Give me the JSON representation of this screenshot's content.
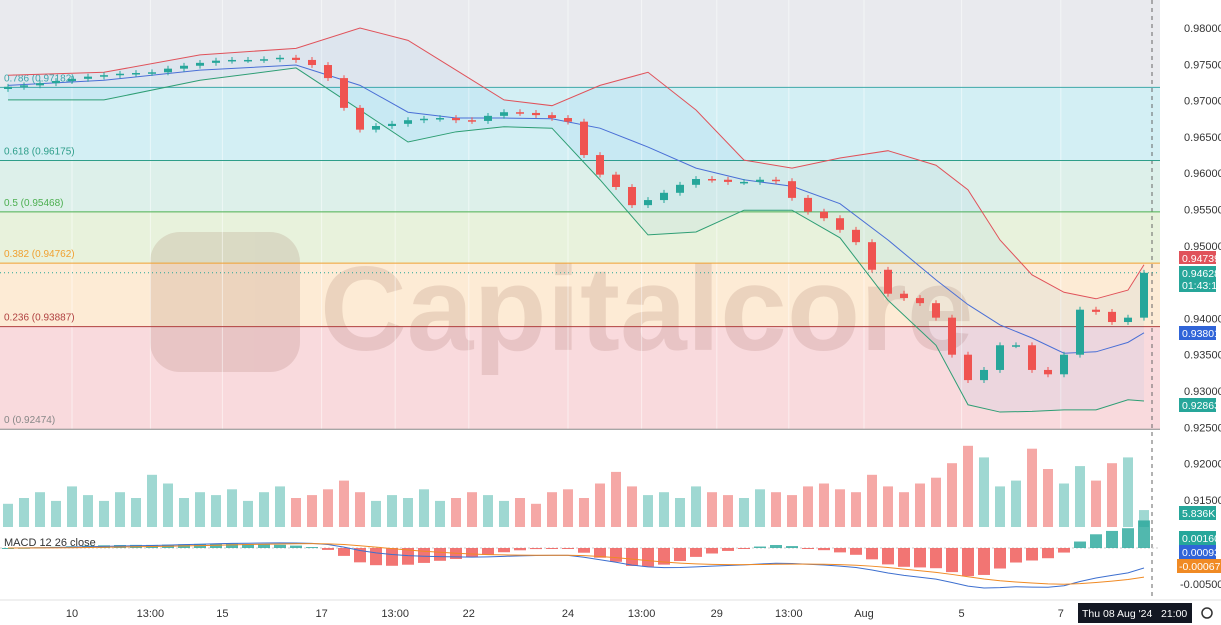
{
  "watermark": "Capitalcore",
  "colors": {
    "up": "#26a69a",
    "down": "#ef5350",
    "vol_up": "#9fd8d2",
    "vol_down": "#f5a8a6",
    "bb_upper": "#e0525a",
    "bb_basis": "#4a6fd6",
    "bb_lower": "#2e9e74",
    "macd": "#3d6fcf",
    "signal": "#f08a24"
  },
  "chart_data": {
    "type": "candlestick",
    "price_axis": {
      "ticks": [
        "0.98000",
        "0.97500",
        "0.97000",
        "0.96500",
        "0.96000",
        "0.95500",
        "0.95000",
        "0.94000",
        "0.93500",
        "0.93000",
        "0.92500",
        "0.92000",
        "0.91500"
      ],
      "range": [
        0.9125,
        0.9815
      ]
    },
    "time_axis": {
      "ticks": [
        {
          "label": "10",
          "index": 4
        },
        {
          "label": "13:00",
          "index": 8.9
        },
        {
          "label": "15",
          "index": 13.4
        },
        {
          "label": "17",
          "index": 19.6
        },
        {
          "label": "13:00",
          "index": 24.2
        },
        {
          "label": "22",
          "index": 28.8
        },
        {
          "label": "24",
          "index": 35
        },
        {
          "label": "13:00",
          "index": 39.6
        },
        {
          "label": "29",
          "index": 44.3
        },
        {
          "label": "13:00",
          "index": 48.8
        },
        {
          "label": "Aug",
          "index": 53.5
        },
        {
          "label": "5",
          "index": 59.6
        },
        {
          "label": "7",
          "index": 65.8
        }
      ],
      "crosshair_label": "Thu 08 Aug '24",
      "crosshair_time": "21:00"
    },
    "first_open": 0.9716,
    "closes": [
      0.9719,
      0.9721,
      0.9724,
      0.9727,
      0.973,
      0.9733,
      0.9735,
      0.9737,
      0.9738,
      0.9739,
      0.9744,
      0.9748,
      0.9752,
      0.9755,
      0.9756,
      0.9756,
      0.9757,
      0.9759,
      0.9756,
      0.9749,
      0.9731,
      0.969,
      0.966,
      0.9665,
      0.9668,
      0.9673,
      0.9675,
      0.9676,
      0.9673,
      0.9672,
      0.9679,
      0.9684,
      0.9683,
      0.968,
      0.9676,
      0.9671,
      0.9625,
      0.9598,
      0.9581,
      0.9556,
      0.9563,
      0.9573,
      0.9584,
      0.9592,
      0.9591,
      0.9588,
      0.9588,
      0.9591,
      0.9589,
      0.9566,
      0.9547,
      0.9538,
      0.9522,
      0.9505,
      0.9467,
      0.9434,
      0.9428,
      0.9421,
      0.9401,
      0.935,
      0.9315,
      0.9329,
      0.9363,
      0.9363,
      0.9329,
      0.9323,
      0.935,
      0.9412,
      0.9409,
      0.9395,
      0.9401,
      0.94628
    ],
    "bollinger": {
      "index": [
        0,
        6,
        12,
        18,
        22,
        25,
        28,
        31,
        34,
        37,
        40,
        43,
        46,
        49,
        52,
        55,
        58,
        60,
        62,
        64,
        66,
        68,
        70,
        71
      ],
      "upper": [
        0.9735,
        0.9739,
        0.9763,
        0.9772,
        0.98,
        0.9783,
        0.9742,
        0.9701,
        0.9693,
        0.9721,
        0.9739,
        0.9687,
        0.9618,
        0.9607,
        0.9621,
        0.9631,
        0.9611,
        0.9577,
        0.9508,
        0.946,
        0.9436,
        0.9427,
        0.9439,
        0.94739
      ],
      "basis": [
        0.9721,
        0.9728,
        0.9742,
        0.9749,
        0.9721,
        0.9684,
        0.9676,
        0.9676,
        0.9675,
        0.9662,
        0.9636,
        0.9607,
        0.9591,
        0.9582,
        0.9558,
        0.9508,
        0.9453,
        0.9419,
        0.9391,
        0.9373,
        0.9352,
        0.9354,
        0.9367,
        0.93801
      ],
      "lower": [
        0.9701,
        0.9701,
        0.9728,
        0.9745,
        0.9687,
        0.9643,
        0.9657,
        0.9664,
        0.9662,
        0.9591,
        0.9515,
        0.9519,
        0.9549,
        0.9549,
        0.9511,
        0.9425,
        0.9363,
        0.9281,
        0.9271,
        0.9272,
        0.9274,
        0.9274,
        0.9288,
        0.92863
      ]
    },
    "fibonacci": [
      {
        "label": "0.786 (0.97182)",
        "price": 0.97182,
        "line": "#3fa8a8",
        "fill": "#e9eaee"
      },
      {
        "label": "0.618 (0.96175)",
        "price": 0.96175,
        "line": "#2e9e8a",
        "fill": "#d3eff4"
      },
      {
        "label": "0.5 (0.95468)",
        "price": 0.95468,
        "line": "#4caf50",
        "fill": "#ddf0ea"
      },
      {
        "label": "0.382 (0.94762)",
        "price": 0.94762,
        "line": "#f0a030",
        "fill": "#e8f2dc"
      },
      {
        "label": "0.236 (0.93887)",
        "price": 0.93887,
        "line": "#b04040",
        "fill": "#fdebd5"
      },
      {
        "label": "0 (0.92474)",
        "price": 0.92474,
        "line": "#888888",
        "fill": "#f9dadd"
      }
    ],
    "volume_k": [
      8,
      10,
      12,
      9,
      14,
      11,
      9,
      12,
      10,
      18,
      15,
      10,
      12,
      11,
      13,
      9,
      12,
      14,
      10,
      11,
      13,
      16,
      12,
      9,
      11,
      10,
      13,
      9,
      10,
      12,
      11,
      9,
      10,
      8,
      12,
      13,
      10,
      15,
      19,
      14,
      11,
      12,
      10,
      14,
      12,
      11,
      10,
      13,
      12,
      11,
      14,
      15,
      13,
      12,
      18,
      14,
      12,
      15,
      17,
      22,
      28,
      24,
      14,
      16,
      27,
      20,
      15,
      21,
      16,
      22,
      24,
      5.836
    ],
    "macd": {
      "title": "MACD 12 26 close",
      "tick": "-0.00500"
    },
    "price_labels": {
      "bb_upper": "0.94739",
      "last_price": "0.94628",
      "countdown": "01:43:17",
      "bb_basis": "0.93801",
      "bb_lower": "0.92863",
      "volume": "5.836K",
      "macd_hist": "0.00160",
      "macd_line": "0.00093",
      "macd_signal": "-0.00067"
    }
  }
}
